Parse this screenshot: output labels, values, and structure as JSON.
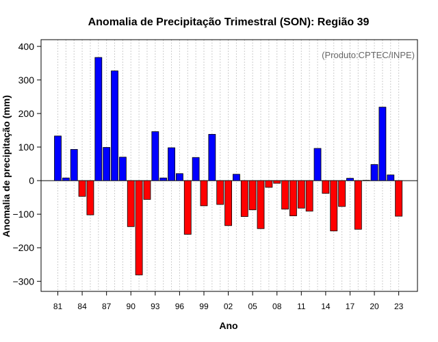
{
  "chart_data": {
    "type": "bar",
    "title": "Anomalia de Precipitação Trimestral (SON): Região 39",
    "xlabel": "Ano",
    "ylabel": "Anomalia de precipitação (mm)",
    "credit": "(Produto:CPTEC/INPE)",
    "ylim": [
      -330,
      420
    ],
    "yticks": [
      -300,
      -200,
      -100,
      0,
      100,
      200,
      300,
      400
    ],
    "ytick_labels": [
      "−300",
      "−200",
      "−100",
      "0",
      "100",
      "200",
      "300",
      "400"
    ],
    "xtick_labels": [
      "81",
      "84",
      "87",
      "90",
      "93",
      "96",
      "99",
      "02",
      "05",
      "08",
      "11",
      "14",
      "17",
      "20",
      "23"
    ],
    "grid": true,
    "colors": {
      "positive": "#0000ff",
      "negative": "#ff0000",
      "grid": "#cccccc",
      "axis": "#000000"
    },
    "categories": [
      "1981",
      "1982",
      "1983",
      "1984",
      "1985",
      "1986",
      "1987",
      "1988",
      "1989",
      "1990",
      "1991",
      "1992",
      "1993",
      "1994",
      "1995",
      "1996",
      "1997",
      "1998",
      "1999",
      "2000",
      "2001",
      "2002",
      "2003",
      "2004",
      "2005",
      "2006",
      "2007",
      "2008",
      "2009",
      "2010",
      "2011",
      "2012",
      "2013",
      "2014",
      "2015",
      "2016",
      "2017",
      "2018",
      "2019",
      "2020",
      "2021",
      "2022",
      "2023"
    ],
    "values": [
      133,
      8,
      93,
      -47,
      -102,
      367,
      99,
      327,
      70,
      -137,
      -281,
      -56,
      146,
      8,
      98,
      21,
      -160,
      69,
      -75,
      138,
      -71,
      -134,
      19,
      -107,
      -87,
      -143,
      -20,
      -8,
      -85,
      -105,
      -82,
      -91,
      96,
      -38,
      -150,
      -77,
      7,
      -145,
      1,
      48,
      219,
      17,
      -106
    ]
  }
}
